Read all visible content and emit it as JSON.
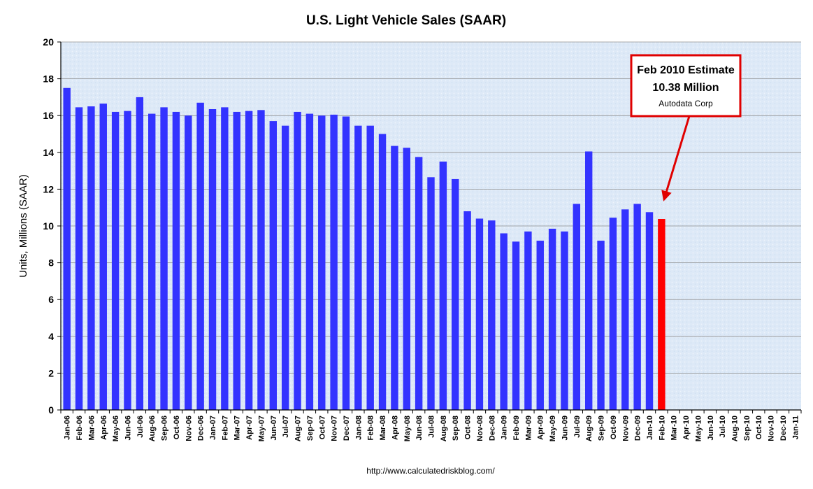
{
  "chart_data": {
    "type": "bar",
    "title": "U.S. Light Vehicle Sales (SAAR)",
    "ylabel": "Units, Millions (SAAR)",
    "xlabel": "",
    "ylim": [
      0,
      20
    ],
    "yticks": [
      0,
      2,
      4,
      6,
      8,
      10,
      12,
      14,
      16,
      18,
      20
    ],
    "grid": true,
    "colors": {
      "series": "#3333ff",
      "highlight": "#ff0000",
      "plot_background": "#dce8f6",
      "callout_border": "#e00000"
    },
    "categories": [
      "Jan-06",
      "Feb-06",
      "Mar-06",
      "Apr-06",
      "May-06",
      "Jun-06",
      "Jul-06",
      "Aug-06",
      "Sep-06",
      "Oct-06",
      "Nov-06",
      "Dec-06",
      "Jan-07",
      "Feb-07",
      "Mar-07",
      "Apr-07",
      "May-07",
      "Jun-07",
      "Jul-07",
      "Aug-07",
      "Sep-07",
      "Oct-07",
      "Nov-07",
      "Dec-07",
      "Jan-08",
      "Feb-08",
      "Mar-08",
      "Apr-08",
      "May-08",
      "Jun-08",
      "Jul-08",
      "Aug-08",
      "Sep-08",
      "Oct-08",
      "Nov-08",
      "Dec-08",
      "Jan-09",
      "Feb-09",
      "Mar-09",
      "Apr-09",
      "May-09",
      "Jun-09",
      "Jul-09",
      "Aug-09",
      "Sep-09",
      "Oct-09",
      "Nov-09",
      "Dec-09",
      "Jan-10",
      "Feb-10",
      "Mar-10",
      "Apr-10",
      "May-10",
      "Jun-10",
      "Jul-10",
      "Aug-10",
      "Sep-10",
      "Oct-10",
      "Nov-10",
      "Dec-10",
      "Jan-11"
    ],
    "values": [
      17.5,
      16.45,
      16.5,
      16.65,
      16.2,
      16.25,
      17.0,
      16.1,
      16.45,
      16.2,
      16.0,
      16.7,
      16.35,
      16.45,
      16.2,
      16.25,
      16.3,
      15.7,
      15.45,
      16.2,
      16.1,
      16.0,
      16.05,
      15.95,
      15.45,
      15.45,
      15.0,
      14.35,
      14.25,
      13.75,
      12.65,
      13.5,
      12.55,
      10.8,
      10.4,
      10.3,
      9.6,
      9.15,
      9.7,
      9.2,
      9.85,
      9.7,
      11.2,
      14.05,
      9.2,
      10.45,
      10.9,
      11.2,
      10.75,
      10.38,
      null,
      null,
      null,
      null,
      null,
      null,
      null,
      null,
      null,
      null,
      null
    ],
    "highlight_index": 49,
    "annotation": {
      "line1": "Feb 2010 Estimate",
      "line2": "10.38 Million",
      "line3": "Autodata Corp"
    },
    "source": "http://www.calculatedriskblog.com/"
  }
}
